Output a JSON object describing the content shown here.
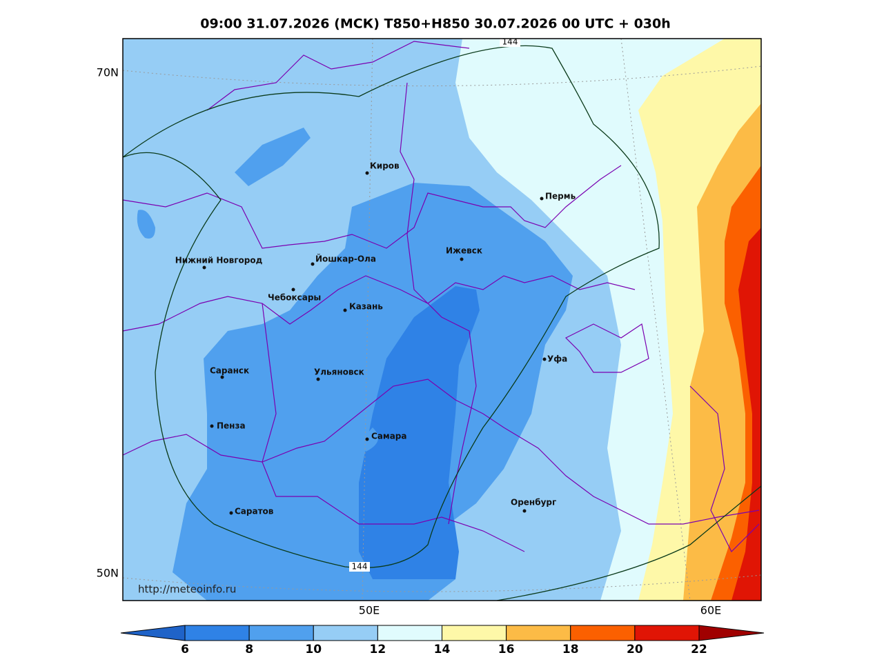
{
  "title": "09:00 31.07.2026 (МСК) T850+H850 30.07.2026 00 UTC + 030h",
  "map": {
    "lat_labels": [
      "70N",
      "50N"
    ],
    "lon_labels": [
      "50E",
      "60E"
    ],
    "cities": [
      "Киров",
      "Пермь",
      "Нижний Новгород",
      "Йошкар-Ола",
      "Ижевск",
      "Чебоксары",
      "Казань",
      "Уфа",
      "Саранск",
      "Ульяновск",
      "Пенза",
      "Самара",
      "Оренбург",
      "Саратов"
    ],
    "contour_labels": [
      "144",
      "144"
    ],
    "watermark": "http://meteoinfo.ru"
  },
  "colorbar": {
    "levels": [
      6,
      8,
      10,
      12,
      14,
      16,
      18,
      20,
      22
    ],
    "colors": [
      "#1f63c8",
      "#2f82e6",
      "#50a0ee",
      "#96cdf5",
      "#e0fbfd",
      "#fef8a8",
      "#fcbb46",
      "#fb6000",
      "#e01505",
      "#a00000"
    ]
  }
}
